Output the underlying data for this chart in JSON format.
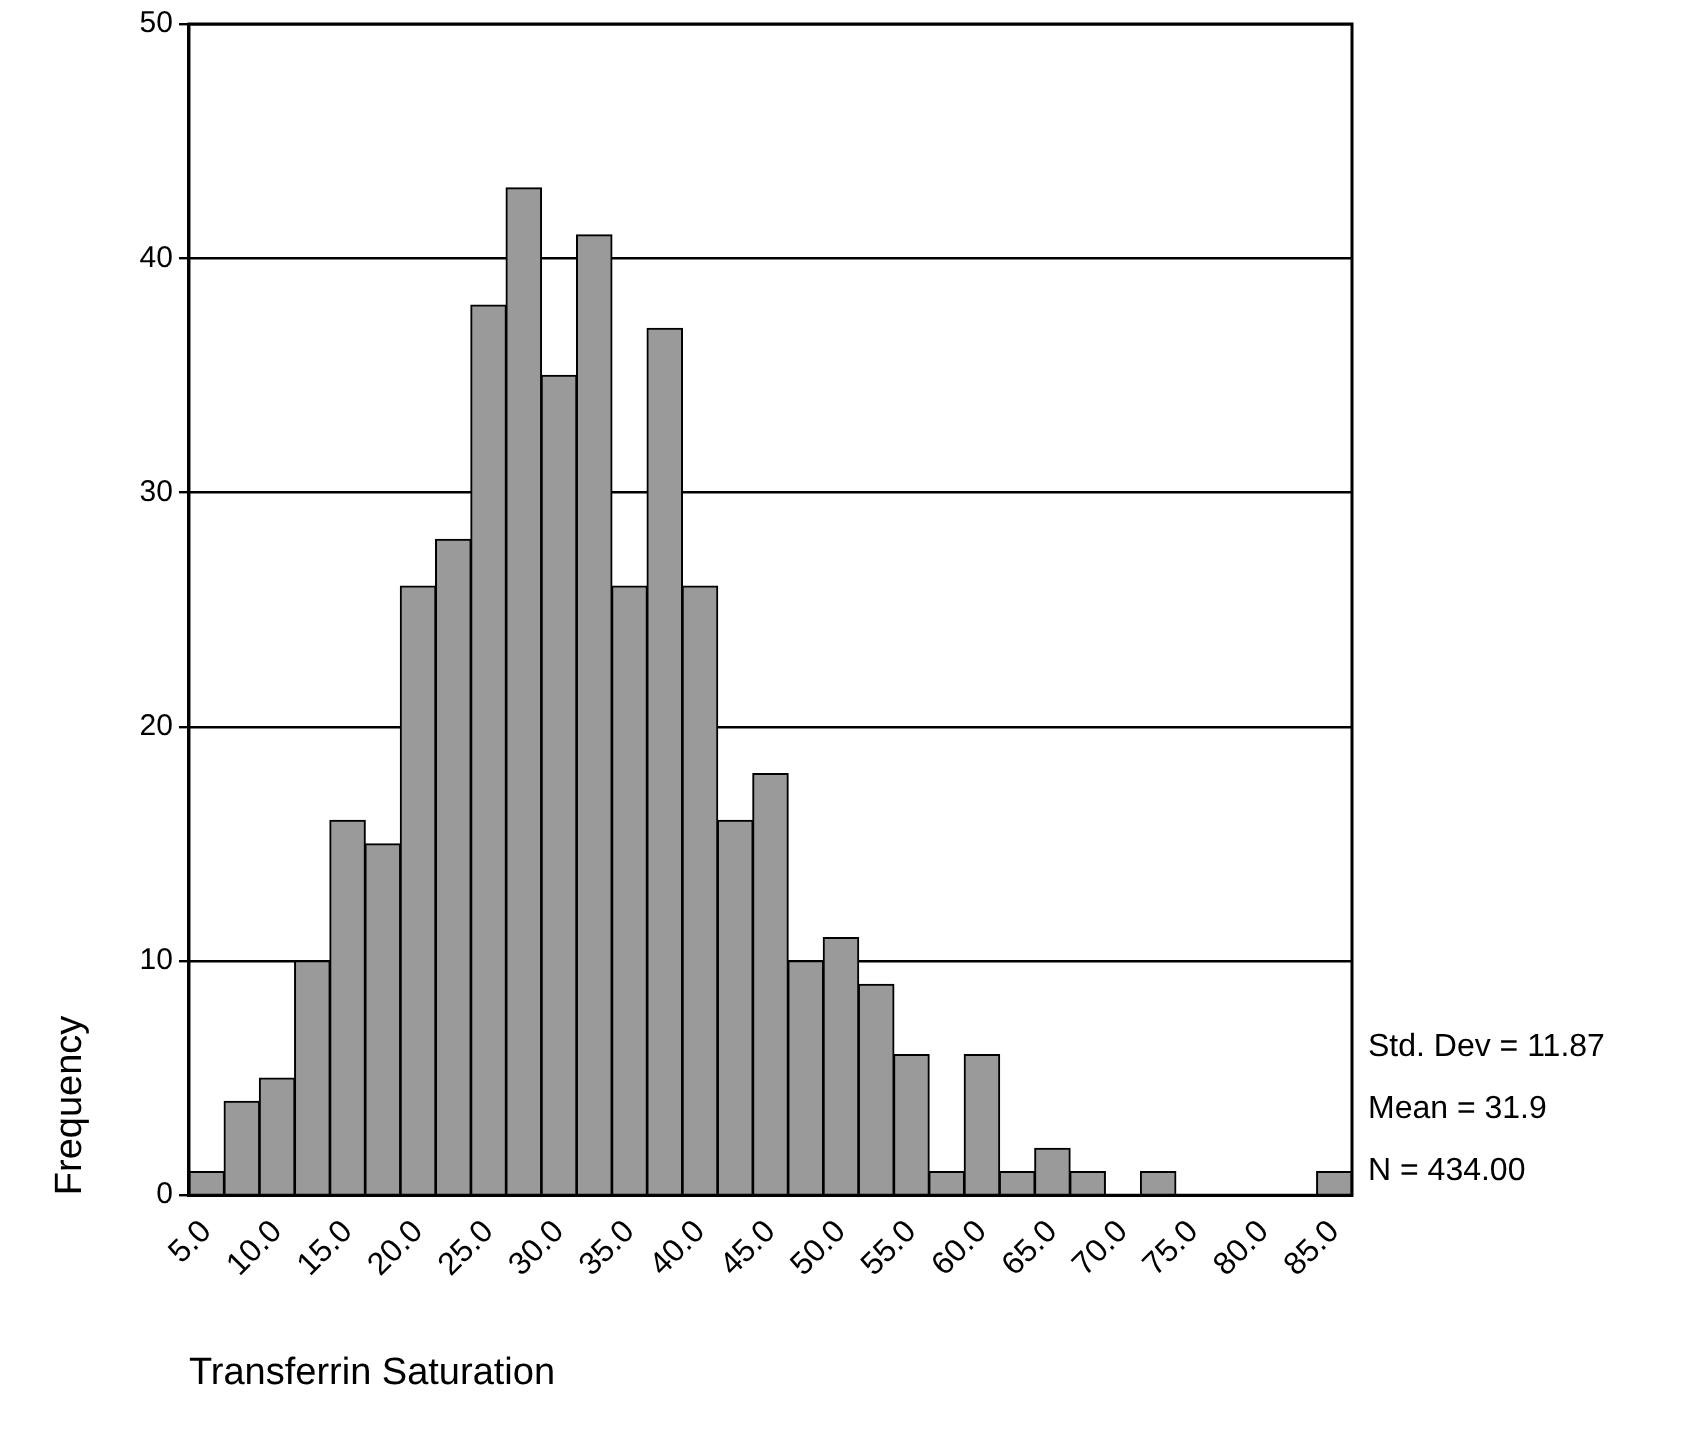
{
  "chart_data": {
    "type": "histogram",
    "xlabel": "Transferrin Saturation",
    "ylabel": "Frequency",
    "bins": [
      3.75,
      6.25,
      8.75,
      11.25,
      13.75,
      16.25,
      18.75,
      21.25,
      23.75,
      26.25,
      28.75,
      31.25,
      33.75,
      36.25,
      38.75,
      41.25,
      43.75,
      46.25,
      48.75,
      51.25,
      53.75,
      56.25,
      58.75,
      61.25,
      63.75,
      66.25,
      68.75,
      71.25,
      73.75,
      76.25,
      78.75,
      81.25,
      83.75,
      86.25
    ],
    "values": [
      1,
      4,
      5,
      10,
      16,
      15,
      26,
      28,
      38,
      43,
      35,
      41,
      26,
      37,
      26,
      16,
      18,
      10,
      11,
      9,
      6,
      1,
      6,
      1,
      2,
      1,
      0,
      1,
      0,
      0,
      0,
      0,
      1
    ],
    "color": "#9a9a9a",
    "xlim": [
      3.75,
      86.25
    ],
    "xticks": [
      {
        "value": 5,
        "label": "5.0"
      },
      {
        "value": 10,
        "label": "10.0"
      },
      {
        "value": 15,
        "label": "15.0"
      },
      {
        "value": 20,
        "label": "20.0"
      },
      {
        "value": 25,
        "label": "25.0"
      },
      {
        "value": 30,
        "label": "30.0"
      },
      {
        "value": 35,
        "label": "35.0"
      },
      {
        "value": 40,
        "label": "40.0"
      },
      {
        "value": 45,
        "label": "45.0"
      },
      {
        "value": 50,
        "label": "50.0"
      },
      {
        "value": 55,
        "label": "55.0"
      },
      {
        "value": 60,
        "label": "60.0"
      },
      {
        "value": 65,
        "label": "65.0"
      },
      {
        "value": 70,
        "label": "70.0"
      },
      {
        "value": 75,
        "label": "75.0"
      },
      {
        "value": 80,
        "label": "80.0"
      },
      {
        "value": 85,
        "label": "85.0"
      }
    ],
    "ylim": [
      0,
      50
    ],
    "yticks": [
      0,
      10,
      20,
      30,
      40,
      50
    ],
    "grid": "y",
    "annotations": [
      "Std. Dev = 11.87",
      "Mean = 31.9",
      "N = 434.00"
    ]
  }
}
